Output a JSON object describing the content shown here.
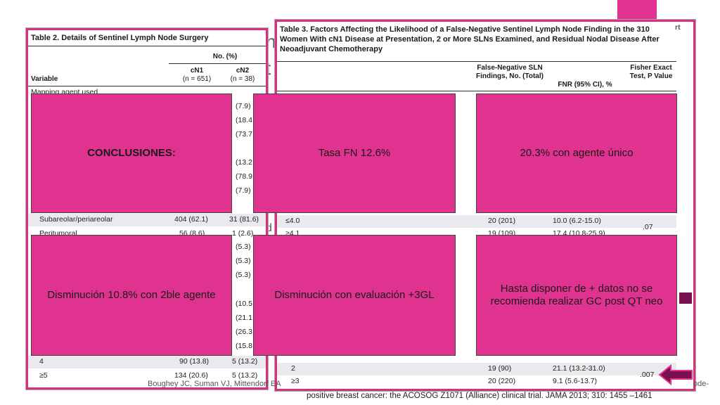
{
  "table2": {
    "title": "Table 2. Details of Sentinel Lymph Node Surgery",
    "col_group": "No. (%)",
    "col_variable": "Variable",
    "col_cn1": "cN1",
    "col_cn1_n": "(n = 651)",
    "col_cn2": "cN2",
    "col_cn2_n": "(n = 38)",
    "first_row": "Mapping agent used",
    "right_fragments": [
      "(7.9)",
      "(18.4",
      "(73.7",
      "(13.2",
      "(78.9",
      "(7.9)",
      "(5.3)",
      "(5.3)",
      "(5.3)",
      "(10.5",
      "(21.1",
      "(26.3",
      "(15.8"
    ],
    "rows": [
      {
        "label": "Subareolar/periareolar",
        "cn1": "404 (62.1)",
        "cn2": "31 (81.6)"
      },
      {
        "label": "Peritumoral",
        "cn1": "56 (8.6)",
        "cn2": "1 (2.6)"
      },
      {
        "label": "4",
        "cn1": "90 (13.8)",
        "cn2": "5 (13.2)"
      },
      {
        "label": "≥5",
        "cn1": "134 (20.6)",
        "cn2": "5 (13.2)"
      }
    ]
  },
  "table3": {
    "title": "Table 3. Factors Affecting the Likelihood of a False-Negative Sentinel Lymph Node Finding in the 310 Women With cN1 Disease at Presentation, 2 or More SLNs Examined, and Residual Nodal Disease After Neoadjuvant Chemotherapy",
    "col_fn": "False-Negative SLN Findings, No. (Total)",
    "col_fnr": "FNR (95% CI), %",
    "col_p": "Fisher Exact Test, P Value",
    "rows": [
      {
        "label": "≤4.0",
        "fn": "20 (201)",
        "fnr": "10.0 (6.2-15.0)"
      },
      {
        "label": "≥4.1",
        "fn": "19 (109)",
        "fnr": "17.4 (10.8-25.9)"
      },
      {
        "label": "2",
        "fn": "19 (90)",
        "fnr": "21.1 (13.2-31.0)"
      },
      {
        "label": "≥3",
        "fn": "20 (220)",
        "fnr": "9.1 (5.6-13.7)"
      }
    ],
    "p1": ".07",
    "p2": ".007",
    "partial_header": "rt"
  },
  "overlays": {
    "b1": "CONCLUSIONES:",
    "b2": "Tasa FN 12.6%",
    "b3": "20.3% con agente único",
    "b4": "Disminución 10.8% con 2ble agente",
    "b5": "Disminución con evaluación +3GL",
    "b6": "Hasta disponer de + datos no se recomienda realizar GC post QT neo"
  },
  "reference": {
    "line1_left": "Boughey JC, Suman VJ, Mittendorf EA",
    "line1_right": "ode-",
    "line2": "positive breast cancer: the ACOSOG Z1071 (Alliance) clinical trial. JAMA 2013; 310: 1455 –1461"
  },
  "colors": {
    "accent": "#e0328f",
    "dark_accent": "#7b1050"
  }
}
